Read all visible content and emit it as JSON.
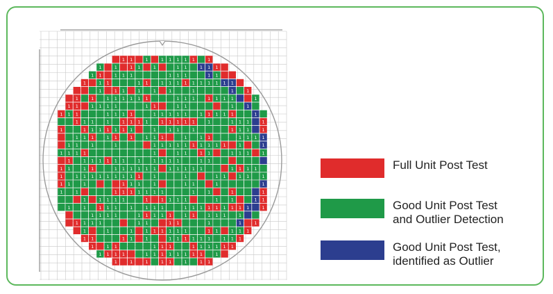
{
  "colors": {
    "frame": "#5cb85c",
    "red": "#e02c2c",
    "green": "#1f9a48",
    "blue": "#2c3e8f",
    "grid": "#c8c8c8",
    "outline": "#9a9a9a",
    "cell_text": "#ffffff"
  },
  "wafer": {
    "rows": 27,
    "cols": 27,
    "cell_number_default": "1"
  },
  "legend": [
    {
      "key": "red",
      "label": "Full Unit Post Test"
    },
    {
      "key": "green",
      "label": "Good Unit Post Test\nand Outlier Detection"
    },
    {
      "key": "blue",
      "label": "Good Unit Post Test,\nidentified  as Outlier"
    }
  ]
}
